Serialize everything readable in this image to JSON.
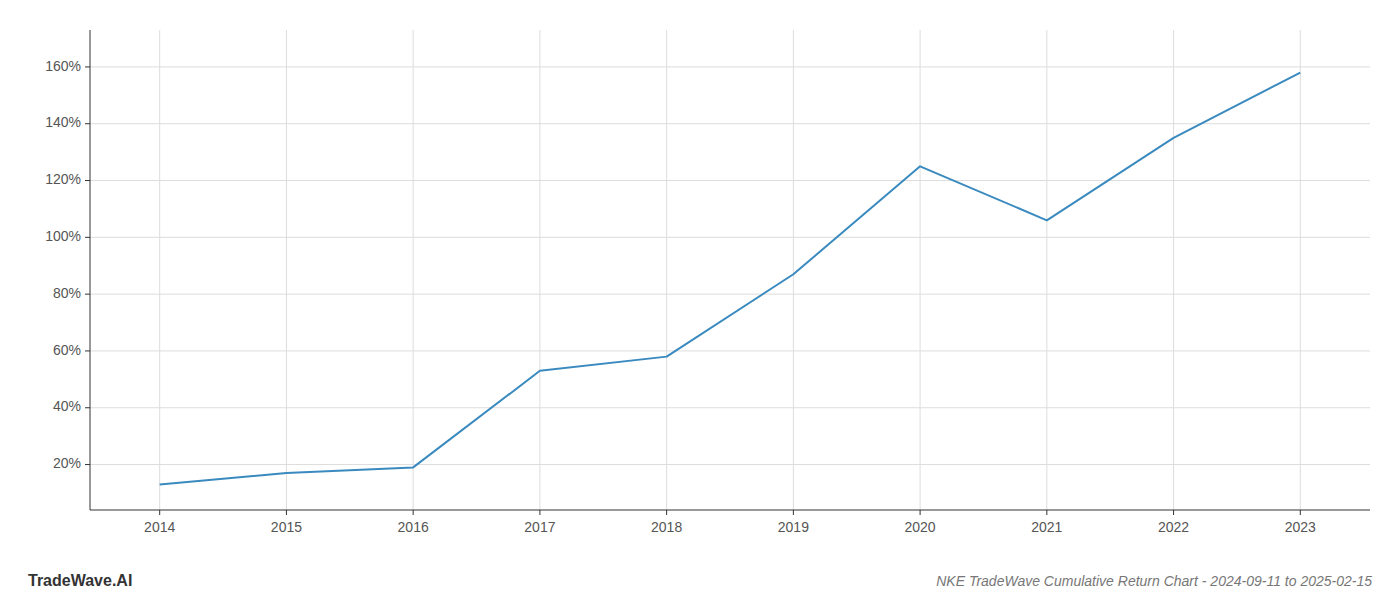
{
  "chart_data": {
    "type": "line",
    "title": "NKE TradeWave Cumulative Return Chart - 2024-09-11 to 2025-02-15",
    "annotations": [
      "TradeWave.AI"
    ],
    "x": [
      2014,
      2015,
      2016,
      2017,
      2018,
      2019,
      2020,
      2021,
      2022,
      2023
    ],
    "values": [
      0.13,
      0.17,
      0.19,
      0.53,
      0.58,
      0.87,
      1.25,
      1.06,
      1.35,
      1.58
    ],
    "color": "#3a8abf",
    "xlim": [
      2013.45,
      2023.55
    ],
    "xticks": [
      2014,
      2015,
      2016,
      2017,
      2018,
      2019,
      2020,
      2021,
      2022,
      2023
    ],
    "ylim": [
      0.04,
      1.73
    ],
    "yticks": [
      {
        "value": 0.2,
        "label": "20%"
      },
      {
        "value": 0.4,
        "label": "40%"
      },
      {
        "value": 0.6,
        "label": "60%"
      },
      {
        "value": 0.8,
        "label": "80%"
      },
      {
        "value": 1.0,
        "label": "100%"
      },
      {
        "value": 1.2,
        "label": "120%"
      },
      {
        "value": 1.4,
        "label": "140%"
      },
      {
        "value": 1.6,
        "label": "160%"
      }
    ],
    "grid": true
  }
}
